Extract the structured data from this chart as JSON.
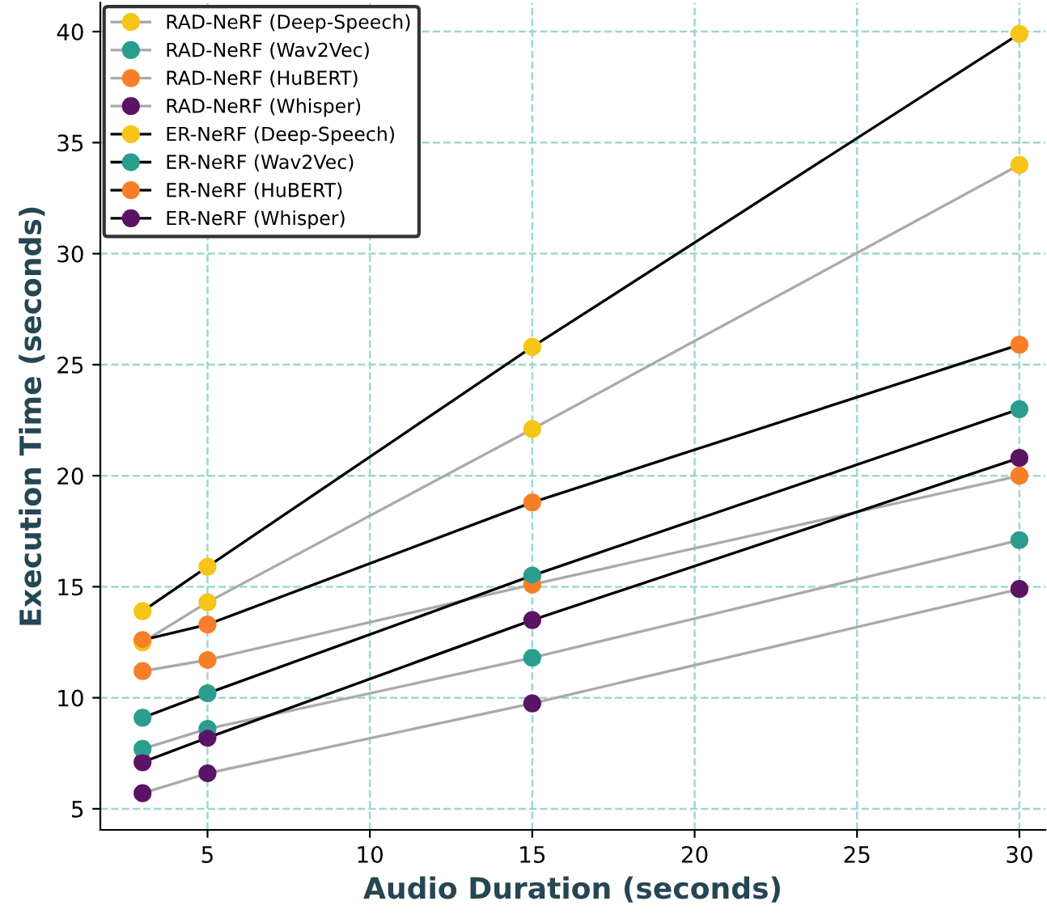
{
  "chart_data": {
    "type": "line",
    "xlabel": "Audio Duration (seconds)",
    "ylabel": "Execution Time (seconds)",
    "x": [
      3,
      5,
      15,
      30
    ],
    "series": [
      {
        "name": "RAD-NeRF (Deep-Speech)",
        "color": "#aaaaaa",
        "colors": [
          "#f5c518",
          "#f5c518",
          "#f5c518",
          "#f5c518"
        ],
        "values": [
          12.5,
          14.3,
          22.1,
          34.0
        ]
      },
      {
        "name": "RAD-NeRF (Wav2Vec)",
        "color": "#aaaaaa",
        "colors": [
          "#2a9d8f",
          "#2a9d8f",
          "#2a9d8f",
          "#2a9d8f"
        ],
        "values": [
          7.7,
          8.6,
          11.8,
          17.1
        ]
      },
      {
        "name": "RAD-NeRF (HuBERT)",
        "color": "#aaaaaa",
        "colors": [
          "#f77f28",
          "#f77f28",
          "#f77f28",
          "#f77f28"
        ],
        "values": [
          11.2,
          11.7,
          15.1,
          20.0
        ]
      },
      {
        "name": "RAD-NeRF (Whisper)",
        "color": "#aaaaaa",
        "colors": [
          "#5a1463",
          "#5a1463",
          "#5a1463",
          "#5a1463"
        ],
        "values": [
          5.7,
          6.6,
          9.75,
          14.9
        ]
      },
      {
        "name": "ER-NeRF (Deep-Speech)",
        "color": "#000000",
        "colors": [
          "#f5c518",
          "#f5c518",
          "#f5c518",
          "#f5c518"
        ],
        "values": [
          13.9,
          15.9,
          25.8,
          39.9
        ]
      },
      {
        "name": "ER-NeRF (Wav2Vec)",
        "color": "#000000",
        "colors": [
          "#2a9d8f",
          "#2a9d8f",
          "#2a9d8f",
          "#2a9d8f"
        ],
        "values": [
          9.1,
          10.2,
          15.5,
          23.0
        ]
      },
      {
        "name": "ER-NeRF (HuBERT)",
        "color": "#000000",
        "colors": [
          "#f77f28",
          "#f77f28",
          "#f77f28",
          "#f77f28"
        ],
        "values": [
          12.6,
          13.3,
          18.8,
          25.9
        ]
      },
      {
        "name": "ER-NeRF (Whisper)",
        "color": "#000000",
        "colors": [
          "#5a1463",
          "#5a1463",
          "#5a1463",
          "#5a1463"
        ],
        "values": [
          7.1,
          8.2,
          13.5,
          20.8
        ]
      }
    ],
    "xlim": [
      1.7,
      30.8
    ],
    "ylim": [
      4.05,
      41.3
    ],
    "xticks": [
      5,
      10,
      15,
      20,
      25,
      30
    ],
    "yticks": [
      5,
      10,
      15,
      20,
      25,
      30,
      35,
      40
    ],
    "grid": true,
    "legend": "top left",
    "marker": "circle",
    "line_style": "solid"
  }
}
